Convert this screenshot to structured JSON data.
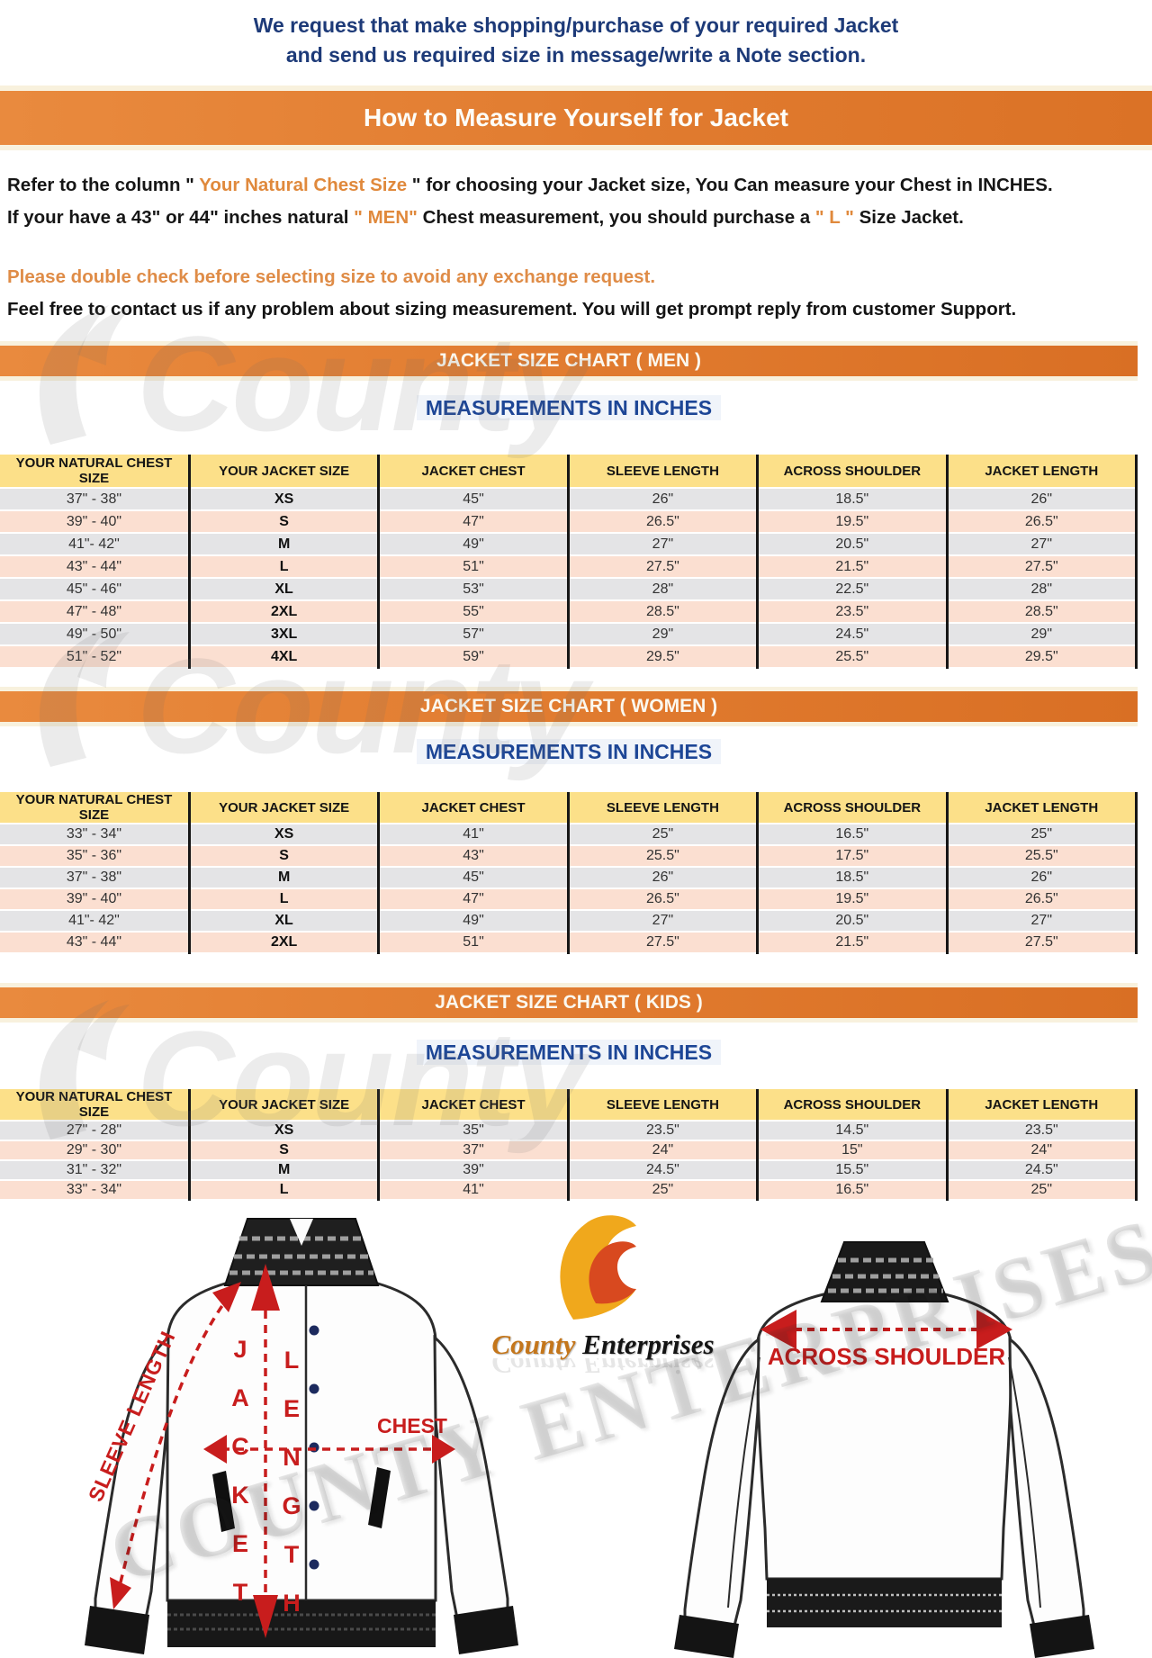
{
  "intro": {
    "line1": "We request that make shopping/purchase of your required Jacket",
    "line2": "and send us required size in message/write a Note section."
  },
  "title_banner": "How to Measure Yourself for Jacket",
  "sizing_note": {
    "p1a": "Refer to the column \" ",
    "p1b": "Your Natural Chest Size",
    "p1c": " \" for choosing your Jacket size, You Can measure your Chest in INCHES.",
    "p2a": "If your have a 43\" or 44\"  inches natural ",
    "p2b": "\" MEN\"",
    "p2c": " Chest measurement, you should purchase a ",
    "p2d": "\" L \"",
    "p2e": " Size Jacket."
  },
  "notices": {
    "double_check": "Please double check before selecting size to avoid any exchange request.",
    "contact": "Feel free to contact us if any problem about sizing measurement. You will get prompt reply from customer Support."
  },
  "sections": [
    {
      "banner": "JACKET SIZE CHART ( MEN )",
      "subtitle": "MEASUREMENTS IN INCHES",
      "columns": [
        "YOUR NATURAL CHEST SIZE",
        "YOUR JACKET SIZE",
        "JACKET CHEST",
        "SLEEVE LENGTH",
        "ACROSS SHOULDER",
        "JACKET LENGTH"
      ],
      "rows": [
        [
          "37\" - 38\"",
          "XS",
          "45\"",
          "26\"",
          "18.5\"",
          "26\""
        ],
        [
          "39\" - 40\"",
          "S",
          "47\"",
          "26.5\"",
          "19.5\"",
          "26.5\""
        ],
        [
          "41\"- 42\"",
          "M",
          "49\"",
          "27\"",
          "20.5\"",
          "27\""
        ],
        [
          "43\" - 44\"",
          "L",
          "51\"",
          "27.5\"",
          "21.5\"",
          "27.5\""
        ],
        [
          "45\" - 46\"",
          "XL",
          "53\"",
          "28\"",
          "22.5\"",
          "28\""
        ],
        [
          "47\" - 48\"",
          "2XL",
          "55\"",
          "28.5\"",
          "23.5\"",
          "28.5\""
        ],
        [
          "49\" - 50\"",
          "3XL",
          "57\"",
          "29\"",
          "24.5\"",
          "29\""
        ],
        [
          "51\" - 52\"",
          "4XL",
          "59\"",
          "29.5\"",
          "25.5\"",
          "29.5\""
        ]
      ]
    },
    {
      "banner": "JACKET SIZE CHART ( WOMEN )",
      "subtitle": "MEASUREMENTS IN INCHES",
      "columns": [
        "YOUR NATURAL CHEST SIZE",
        "YOUR JACKET SIZE",
        "JACKET CHEST",
        "SLEEVE LENGTH",
        "ACROSS SHOULDER",
        "JACKET LENGTH"
      ],
      "rows": [
        [
          "33\" - 34\"",
          "XS",
          "41\"",
          "25\"",
          "16.5\"",
          "25\""
        ],
        [
          "35\" - 36\"",
          "S",
          "43\"",
          "25.5\"",
          "17.5\"",
          "25.5\""
        ],
        [
          "37\" - 38\"",
          "M",
          "45\"",
          "26\"",
          "18.5\"",
          "26\""
        ],
        [
          "39\" - 40\"",
          "L",
          "47\"",
          "26.5\"",
          "19.5\"",
          "26.5\""
        ],
        [
          "41\"- 42\"",
          "XL",
          "49\"",
          "27\"",
          "20.5\"",
          "27\""
        ],
        [
          "43\" - 44\"",
          "2XL",
          "51\"",
          "27.5\"",
          "21.5\"",
          "27.5\""
        ]
      ]
    },
    {
      "banner": "JACKET SIZE CHART ( KIDS )",
      "subtitle": "MEASUREMENTS IN INCHES",
      "columns": [
        "YOUR NATURAL CHEST SIZE",
        "YOUR JACKET SIZE",
        "JACKET CHEST",
        "SLEEVE LENGTH",
        "ACROSS SHOULDER",
        "JACKET LENGTH"
      ],
      "rows": [
        [
          "27\" - 28\"",
          "XS",
          "35\"",
          "23.5\"",
          "14.5\"",
          "23.5\""
        ],
        [
          "29\" - 30\"",
          "S",
          "37\"",
          "24\"",
          "15\"",
          "24\""
        ],
        [
          "31\" - 32\"",
          "M",
          "39\"",
          "24.5\"",
          "15.5\"",
          "24.5\""
        ],
        [
          "33\" - 34\"",
          "L",
          "41\"",
          "25\"",
          "16.5\"",
          "25\""
        ]
      ]
    }
  ],
  "diagram": {
    "sleeve_length_label": "SLEEVE LENGTH",
    "jacket_word": "JACKET",
    "length_word": "LENGTH",
    "chest_label": "CHEST",
    "across_shoulder_label": "ACROSS SHOULDER"
  },
  "logo": {
    "county": "County",
    "enterprises": " Enterprises",
    "reflect": "County Enterprises"
  },
  "watermarks": {
    "county": "County",
    "full": "COUNTY ENTERPRISES"
  },
  "colors": {
    "accent_orange": "#e07a2e",
    "navy_text": "#1d3a78",
    "blue_heading": "#1d4696",
    "header_yellow": "#fce089",
    "row_gray": "#e4e4e6",
    "row_pink": "#fbdfd1",
    "annotation_red": "#c81d1d"
  }
}
